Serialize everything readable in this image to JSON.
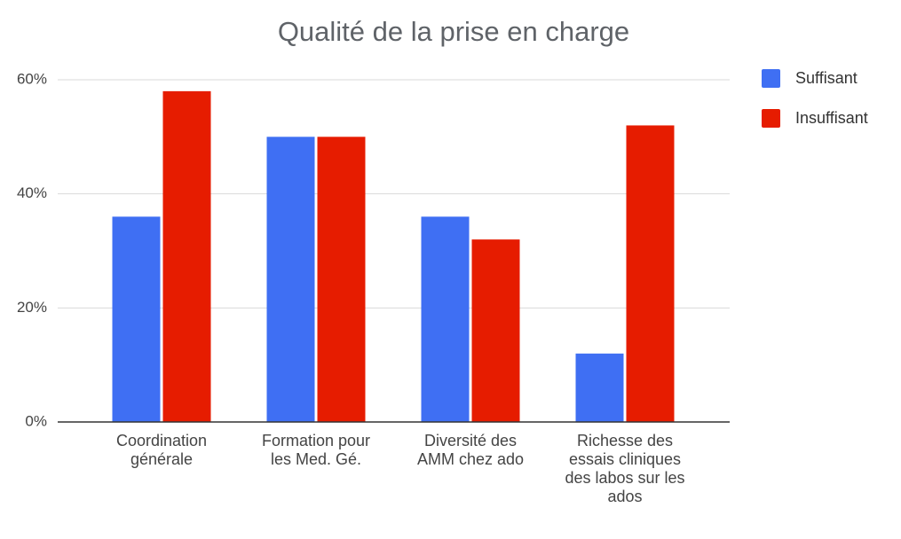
{
  "chart_data": {
    "type": "bar",
    "title": "Qualité de la prise en charge",
    "categories": [
      "Coordination générale",
      "Formation pour les Med. Gé.",
      "Diversité des AMM chez ado",
      "Richesse des essais cliniques des labos sur les ados"
    ],
    "series": [
      {
        "name": "Suffisant",
        "color": "#3f6ff3",
        "values": [
          36,
          50,
          36,
          12
        ]
      },
      {
        "name": "Insuffisant",
        "color": "#e61c00",
        "values": [
          58,
          50,
          32,
          52
        ]
      }
    ],
    "ylim": [
      0,
      60
    ],
    "yticks": [
      {
        "value": 0,
        "label": "0%"
      },
      {
        "value": 20,
        "label": "20%"
      },
      {
        "value": 40,
        "label": "40%"
      },
      {
        "value": 60,
        "label": "60%"
      }
    ],
    "grid": true,
    "legend": "right"
  }
}
